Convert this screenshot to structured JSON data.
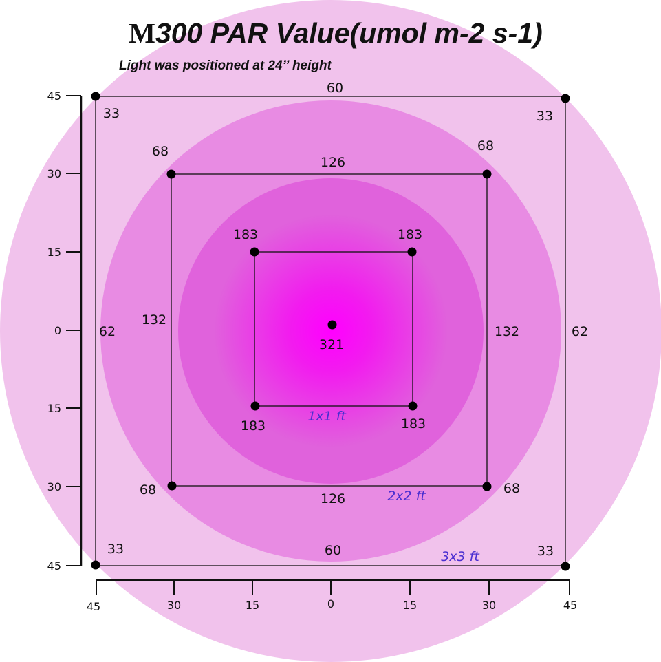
{
  "title": {
    "model": "M",
    "text": "300 PAR Value(umol m-2 s-1)"
  },
  "subtitle": "Light was positioned at 24’’ height",
  "units": {
    "zones": [
      "1x1 ft",
      "2x2 ft",
      "3x3 ft"
    ]
  },
  "colors": {
    "outer_ring": "#f1c2ec",
    "middle_ring": "#e88be3",
    "inner_ring": "#e062dc",
    "hotspot": "#ff00ff",
    "point": "#000000",
    "zone_label": "#4a2fd0"
  },
  "axes": {
    "y_ticks": [
      "45",
      "30",
      "15",
      "0",
      "15",
      "30",
      "45"
    ],
    "x_ticks": [
      "45",
      "30",
      "15",
      "0",
      "15",
      "30",
      "45"
    ]
  },
  "measurements": {
    "center": "321",
    "zone_1x1": {
      "top_left": "183",
      "top_right": "183",
      "bottom_left": "183",
      "bottom_right": "183"
    },
    "zone_2x2": {
      "top_left": "68",
      "top_right": "68",
      "bottom_left": "68",
      "bottom_right": "68",
      "top_mid": "126",
      "bottom_mid": "126",
      "left_mid": "132",
      "right_mid": "132"
    },
    "zone_3x3": {
      "top_left": "33",
      "top_right": "33",
      "bottom_left": "33",
      "bottom_right": "33",
      "top_mid": "60",
      "bottom_mid": "60",
      "left_mid": "62",
      "right_mid": "62"
    }
  }
}
